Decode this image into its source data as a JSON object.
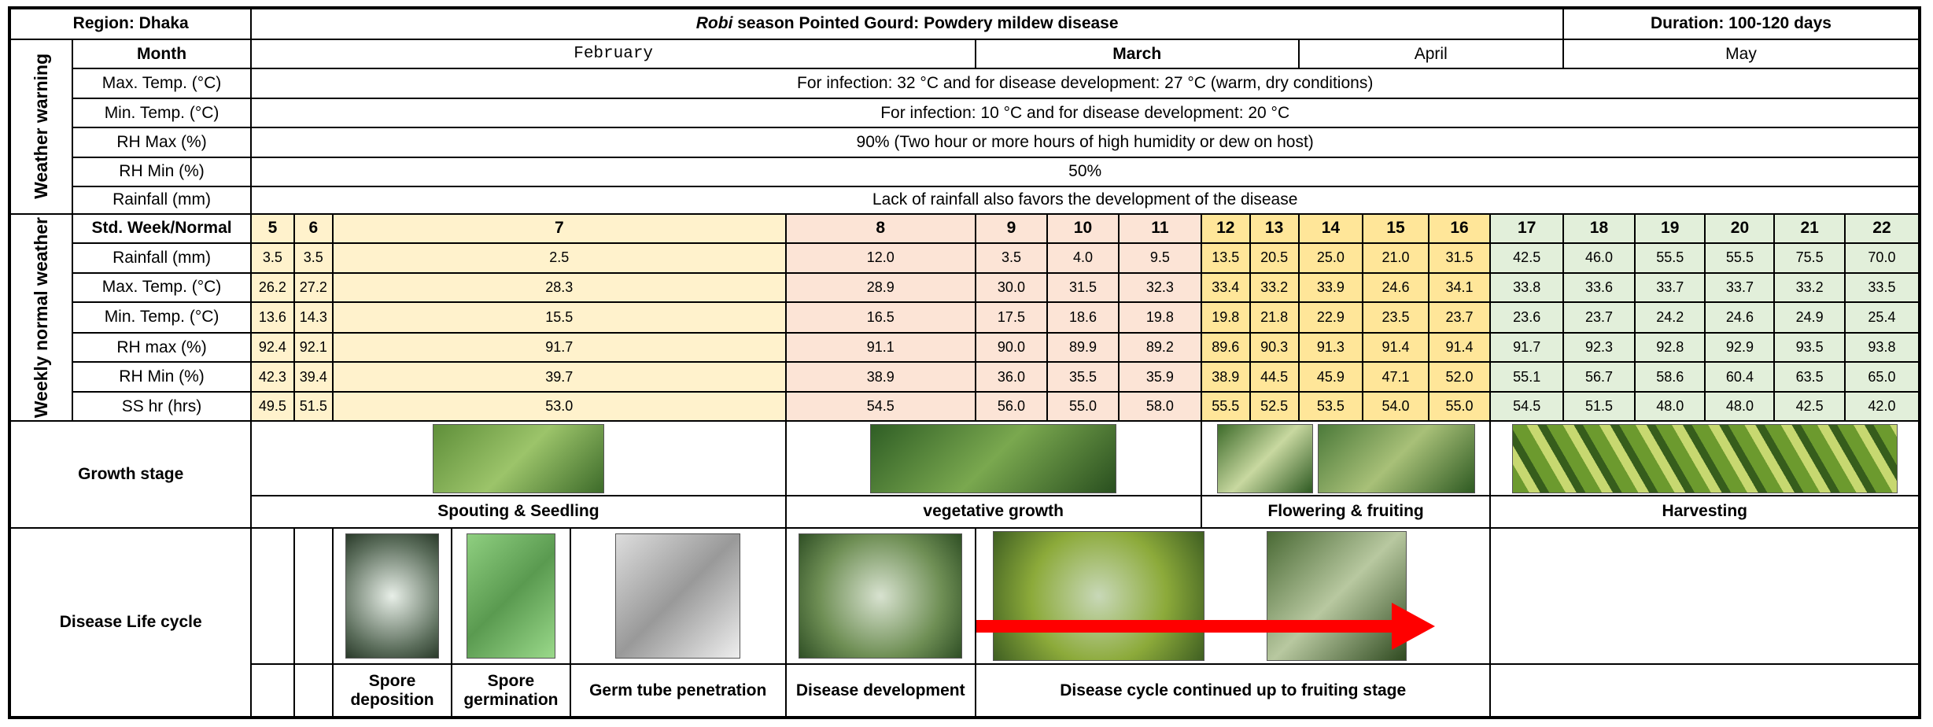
{
  "header": {
    "region": "Region: Dhaka",
    "title_italic": "Robi",
    "title_rest": " season Pointed Gourd: Powdery mildew disease",
    "duration": "Duration: 100-120 days"
  },
  "month_label": "Month",
  "months": [
    "February",
    "March",
    "April",
    "May"
  ],
  "weather_warning": {
    "label": "Weather warning",
    "rows": [
      {
        "param": "Max. Temp. (°C)",
        "text": "For infection: 32 °C and for disease development: 27 °C (warm, dry conditions)"
      },
      {
        "param": "Min. Temp. (°C)",
        "text": "For infection: 10 °C and for disease development: 20 °C"
      },
      {
        "param": "RH Max (%)",
        "text": "90% (Two hour or more hours of high humidity or dew on host)"
      },
      {
        "param": "RH Min (%)",
        "text": "50%"
      },
      {
        "param": "Rainfall (mm)",
        "text": "Lack of rainfall also favors the development of the disease"
      }
    ]
  },
  "weekly": {
    "label": "Weekly normal weather",
    "header_label": "Std. Week/Normal",
    "weeks": [
      5,
      6,
      7,
      8,
      9,
      10,
      11,
      12,
      13,
      14,
      15,
      16,
      17,
      18,
      19,
      20,
      21,
      22
    ],
    "rows": [
      {
        "param": "Rainfall (mm)",
        "values": [
          "3.5",
          "3.5",
          "2.5",
          "12.0",
          "3.5",
          "4.0",
          "9.5",
          "13.5",
          "20.5",
          "25.0",
          "21.0",
          "31.5",
          "42.5",
          "46.0",
          "55.5",
          "55.5",
          "75.5",
          "70.0"
        ]
      },
      {
        "param": "Max. Temp. (°C)",
        "values": [
          "26.2",
          "27.2",
          "28.3",
          "28.9",
          "30.0",
          "31.5",
          "32.3",
          "33.4",
          "33.2",
          "33.9",
          "24.6",
          "34.1",
          "33.8",
          "33.6",
          "33.7",
          "33.7",
          "33.2",
          "33.5"
        ]
      },
      {
        "param": "Min. Temp. (°C)",
        "values": [
          "13.6",
          "14.3",
          "15.5",
          "16.5",
          "17.5",
          "18.6",
          "19.8",
          "19.8",
          "21.8",
          "22.9",
          "23.5",
          "23.7",
          "23.6",
          "23.7",
          "24.2",
          "24.6",
          "24.9",
          "25.4"
        ]
      },
      {
        "param": "RH max (%)",
        "values": [
          "92.4",
          "92.1",
          "91.7",
          "91.1",
          "90.0",
          "89.9",
          "89.2",
          "89.6",
          "90.3",
          "91.3",
          "91.4",
          "91.4",
          "91.7",
          "92.3",
          "92.8",
          "92.9",
          "93.5",
          "93.8"
        ]
      },
      {
        "param": "RH Min (%)",
        "values": [
          "42.3",
          "39.4",
          "39.7",
          "38.9",
          "36.0",
          "35.5",
          "35.9",
          "38.9",
          "44.5",
          "45.9",
          "47.1",
          "52.0",
          "55.1",
          "56.7",
          "58.6",
          "60.4",
          "63.5",
          "65.0"
        ]
      },
      {
        "param": "SS hr (hrs)",
        "values": [
          "49.5",
          "51.5",
          "53.0",
          "54.5",
          "56.0",
          "55.0",
          "58.0",
          "55.5",
          "52.5",
          "53.5",
          "54.0",
          "55.0",
          "54.5",
          "51.5",
          "48.0",
          "48.0",
          "42.5",
          "42.0"
        ]
      }
    ]
  },
  "growth": {
    "label": "Growth stage",
    "stages": [
      "Spouting & Seedling",
      "vegetative growth",
      "Flowering & fruiting",
      "Harvesting"
    ]
  },
  "disease": {
    "label": "Disease Life cycle",
    "stages": [
      "Spore deposition",
      "Spore germination",
      "Germ tube penetration",
      "Disease development",
      "Disease cycle continued up to fruiting stage"
    ]
  }
}
